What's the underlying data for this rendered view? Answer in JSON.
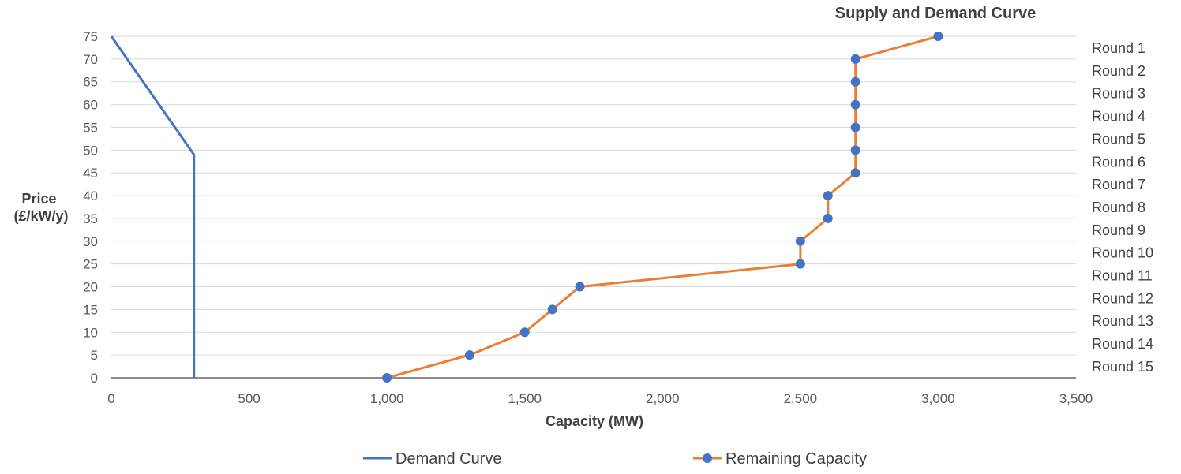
{
  "chart_data": {
    "type": "line",
    "title": "Supply and Demand Curve",
    "xlabel": "Capacity (MW)",
    "ylabel_lines": [
      "Price",
      "(£/kW/y)"
    ],
    "xlim": [
      0,
      3500
    ],
    "ylim": [
      0,
      75
    ],
    "x_ticks": [
      0,
      500,
      1000,
      1500,
      2000,
      2500,
      3000,
      3500
    ],
    "x_tick_labels": [
      "0",
      "500",
      "1,000",
      "1,500",
      "2,000",
      "2,500",
      "3,000",
      "3,500"
    ],
    "y_ticks": [
      0,
      5,
      10,
      15,
      20,
      25,
      30,
      35,
      40,
      45,
      50,
      55,
      60,
      65,
      70,
      75
    ],
    "y_tick_labels": [
      "0",
      "5",
      "10",
      "15",
      "20",
      "25",
      "30",
      "35",
      "40",
      "45",
      "50",
      "55",
      "60",
      "65",
      "70",
      "75"
    ],
    "horizontal_grid": true,
    "legend_position": "bottom",
    "round_labels": [
      "Round 1",
      "Round 2",
      "Round 3",
      "Round 4",
      "Round 5",
      "Round 6",
      "Round 7",
      "Round 8",
      "Round 9",
      "Round 10",
      "Round 11",
      "Round 12",
      "Round 13",
      "Round 14",
      "Round 15"
    ],
    "series": [
      {
        "name": "Demand Curve",
        "color": "#4472c4",
        "markers": false,
        "points": [
          [
            0,
            75
          ],
          [
            300,
            49
          ],
          [
            300,
            0
          ]
        ]
      },
      {
        "name": "Remaining Capacity",
        "color": "#ed7d31",
        "marker_color": "#4472c4",
        "markers": true,
        "points": [
          [
            3000,
            75
          ],
          [
            2700,
            70
          ],
          [
            2700,
            65
          ],
          [
            2700,
            60
          ],
          [
            2700,
            55
          ],
          [
            2700,
            50
          ],
          [
            2700,
            45
          ],
          [
            2600,
            40
          ],
          [
            2600,
            35
          ],
          [
            2500,
            30
          ],
          [
            2500,
            25
          ],
          [
            1700,
            20
          ],
          [
            1600,
            15
          ],
          [
            1500,
            10
          ],
          [
            1300,
            5
          ],
          [
            1000,
            0
          ]
        ]
      }
    ]
  }
}
